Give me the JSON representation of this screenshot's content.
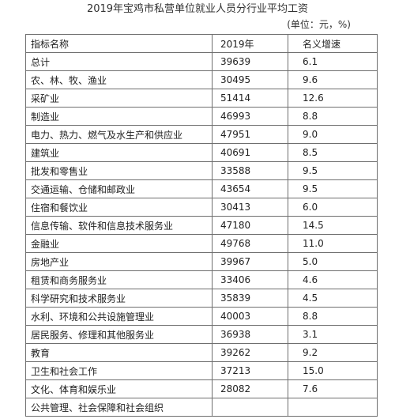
{
  "title": "2019年宝鸡市私营单位就业人员分行业平均工资",
  "unit": "(单位：元，%)",
  "table": {
    "headers": [
      "指标名称",
      "2019年",
      "名义增速"
    ],
    "rows": [
      {
        "name": "总计",
        "wage": "39639",
        "growth": "6.1"
      },
      {
        "name": "农、林、牧、渔业",
        "wage": "30495",
        "growth": "9.6"
      },
      {
        "name": "采矿业",
        "wage": "51414",
        "growth": "12.6"
      },
      {
        "name": "制造业",
        "wage": "46993",
        "growth": "8.8"
      },
      {
        "name": "电力、热力、燃气及水生产和供应业",
        "wage": "47951",
        "growth": "9.0"
      },
      {
        "name": "建筑业",
        "wage": "40691",
        "growth": "8.5"
      },
      {
        "name": "批发和零售业",
        "wage": "33588",
        "growth": "9.5"
      },
      {
        "name": "交通运输、仓储和邮政业",
        "wage": "43654",
        "growth": "9.5"
      },
      {
        "name": "住宿和餐饮业",
        "wage": "30413",
        "growth": "6.0"
      },
      {
        "name": "信息传输、软件和信息技术服务业",
        "wage": "47180",
        "growth": "14.5"
      },
      {
        "name": "金融业",
        "wage": "49768",
        "growth": "11.0"
      },
      {
        "name": "房地产业",
        "wage": "39967",
        "growth": "5.0"
      },
      {
        "name": "租赁和商务服务业",
        "wage": "33406",
        "growth": "4.6"
      },
      {
        "name": "科学研究和技术服务业",
        "wage": "35839",
        "growth": "4.5"
      },
      {
        "name": "水利、环境和公共设施管理业",
        "wage": "40003",
        "growth": "8.8"
      },
      {
        "name": "居民服务、修理和其他服务业",
        "wage": "36938",
        "growth": "3.1"
      },
      {
        "name": "教育",
        "wage": "39262",
        "growth": "9.2"
      },
      {
        "name": "卫生和社会工作",
        "wage": "37213",
        "growth": "15.0"
      },
      {
        "name": "文化、体育和娱乐业",
        "wage": "28082",
        "growth": "7.6"
      },
      {
        "name": "公共管理、社会保障和社会组织",
        "wage": "",
        "growth": ""
      }
    ]
  }
}
